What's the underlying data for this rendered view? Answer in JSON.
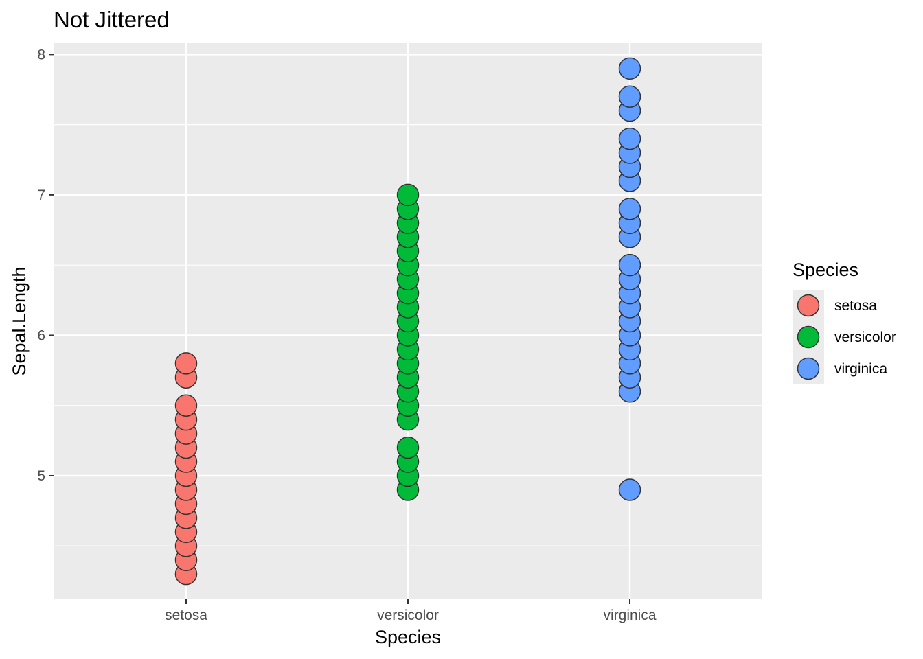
{
  "chart_data": {
    "type": "scatter",
    "title": "Not Jittered",
    "xlabel": "Species",
    "ylabel": "Sepal.Length",
    "categories": [
      "setosa",
      "versicolor",
      "virginica"
    ],
    "ylim": [
      4.12,
      8.08
    ],
    "yticks": [
      5,
      6,
      7,
      8
    ],
    "grid": true,
    "legend": {
      "title": "Species",
      "position": "right",
      "entries": [
        "setosa",
        "versicolor",
        "virginica"
      ]
    },
    "series": [
      {
        "name": "setosa",
        "color": "#F8766D",
        "x": "setosa",
        "values": [
          4.3,
          4.4,
          4.5,
          4.6,
          4.7,
          4.8,
          4.9,
          5.0,
          5.1,
          5.2,
          5.3,
          5.4,
          5.5,
          5.7,
          5.8
        ]
      },
      {
        "name": "versicolor",
        "color": "#00BA38",
        "x": "versicolor",
        "values": [
          4.9,
          5.0,
          5.1,
          5.2,
          5.4,
          5.5,
          5.6,
          5.7,
          5.8,
          5.9,
          6.0,
          6.1,
          6.2,
          6.3,
          6.4,
          6.5,
          6.6,
          6.7,
          6.8,
          6.9,
          7.0
        ]
      },
      {
        "name": "virginica",
        "color": "#619CFF",
        "x": "virginica",
        "values": [
          4.9,
          5.6,
          5.7,
          5.8,
          5.9,
          6.0,
          6.1,
          6.2,
          6.3,
          6.4,
          6.5,
          6.7,
          6.8,
          6.9,
          7.1,
          7.2,
          7.3,
          7.4,
          7.6,
          7.7,
          7.9
        ]
      }
    ]
  }
}
